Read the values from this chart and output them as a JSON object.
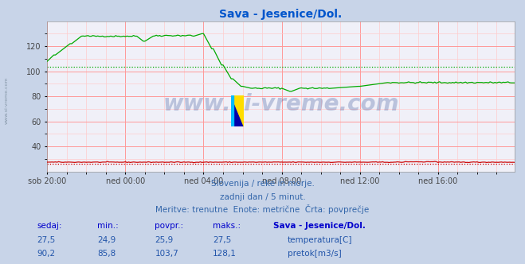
{
  "title": "Sava - Jesenice/Dol.",
  "title_color": "#0055cc",
  "bg_color": "#c8d4e8",
  "plot_bg_color": "#f0f0f8",
  "grid_major_color": "#ff9999",
  "grid_minor_color": "#ffcccc",
  "x_tick_labels": [
    "sob 20:00",
    "ned 00:00",
    "ned 04:00",
    "ned 08:00",
    "ned 12:00",
    "ned 16:00"
  ],
  "x_tick_positions": [
    0,
    48,
    96,
    144,
    192,
    240
  ],
  "ylim": [
    20,
    140
  ],
  "yticks": [
    40,
    60,
    80,
    100,
    120
  ],
  "temp_color": "#cc0000",
  "flow_color": "#00aa00",
  "avg_temp": 25.9,
  "avg_flow": 103.7,
  "watermark_text": "www.si-vreme.com",
  "watermark_color": "#1a3a8a",
  "watermark_alpha": 0.25,
  "subtitle1": "Slovenija / reke in morje.",
  "subtitle2": "zadnji dan / 5 minut.",
  "subtitle3": "Meritve: trenutne  Enote: metrične  Črta: povprečje",
  "subtitle_color": "#3366aa",
  "table_headers": [
    "sedaj:",
    "min.:",
    "povpr.:",
    "maks.:",
    "Sava - Jesenice/Dol."
  ],
  "table_header_color": "#0000cc",
  "table_rows": [
    [
      "27,5",
      "24,9",
      "25,9",
      "27,5",
      "temperatura[C]",
      "#cc0000"
    ],
    [
      "90,2",
      "85,8",
      "103,7",
      "128,1",
      "pretok[m3/s]",
      "#00aa00"
    ]
  ],
  "table_data_color": "#2255aa",
  "n_points": 288
}
